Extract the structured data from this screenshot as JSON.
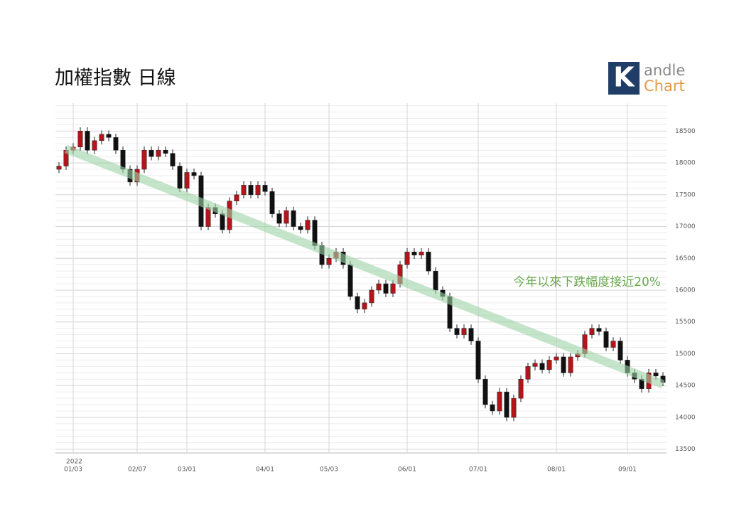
{
  "chart_data": {
    "type": "candlestick",
    "title": "加權指數 日線",
    "year_label": "2022",
    "categories": [
      null,
      null,
      "01/03",
      null,
      null,
      null,
      null,
      null,
      null,
      null,
      null,
      "02/07",
      null,
      null,
      null,
      null,
      null,
      null,
      "03/01",
      null,
      null,
      null,
      null,
      null,
      null,
      null,
      null,
      null,
      null,
      "04/01",
      null,
      null,
      null,
      null,
      null,
      null,
      null,
      null,
      "05/03",
      null,
      null,
      null,
      null,
      null,
      null,
      null,
      null,
      null,
      null,
      "06/01",
      null,
      null,
      null,
      null,
      null,
      null,
      null,
      null,
      null,
      "07/01",
      null,
      null,
      null,
      null,
      null,
      null,
      null,
      null,
      null,
      null,
      "08/01",
      null,
      null,
      null,
      null,
      null,
      null,
      null,
      null,
      null,
      "09/01",
      null,
      null,
      null,
      null,
      null
    ],
    "open": [
      17900,
      17950,
      18200,
      18250,
      18500,
      18200,
      18350,
      18450,
      18400,
      18200,
      17900,
      17700,
      17900,
      18200,
      18100,
      18200,
      18150,
      17950,
      17600,
      17850,
      17800,
      17000,
      17300,
      17200,
      16950,
      17400,
      17500,
      17650,
      17500,
      17650,
      17550,
      17200,
      17050,
      17250,
      17000,
      16950,
      17100,
      16700,
      16400,
      16500,
      16600,
      16400,
      15900,
      15700,
      15800,
      16000,
      16100,
      15950,
      16100,
      16400,
      16600,
      16550,
      16600,
      16300,
      16000,
      15900,
      15400,
      15300,
      15400,
      15200,
      14600,
      14200,
      14100,
      14400,
      14000,
      14300,
      14600,
      14800,
      14850,
      14750,
      14900,
      14950,
      14700,
      14950,
      15000,
      15300,
      15400,
      15350,
      15100,
      15200,
      14900,
      14700,
      14600,
      14450,
      14700,
      14650
    ],
    "close": [
      17950,
      18200,
      18250,
      18500,
      18200,
      18350,
      18450,
      18400,
      18200,
      17900,
      17700,
      17900,
      18200,
      18100,
      18200,
      18150,
      17950,
      17600,
      17850,
      17800,
      17000,
      17300,
      17200,
      16950,
      17400,
      17500,
      17650,
      17500,
      17650,
      17550,
      17200,
      17050,
      17250,
      17000,
      16950,
      17100,
      16700,
      16400,
      16500,
      16600,
      16400,
      15900,
      15700,
      15800,
      16000,
      16100,
      15950,
      16100,
      16400,
      16600,
      16550,
      16600,
      16300,
      16000,
      15900,
      15400,
      15300,
      15400,
      15200,
      14600,
      14200,
      14100,
      14400,
      14000,
      14300,
      14600,
      14800,
      14850,
      14750,
      14900,
      14950,
      14700,
      14950,
      15000,
      15300,
      15400,
      15350,
      15100,
      15200,
      14900,
      14700,
      14600,
      14450,
      14700,
      14650,
      14550
    ],
    "high": [
      18010,
      18260,
      18310,
      18560,
      18560,
      18410,
      18510,
      18510,
      18460,
      18260,
      17960,
      17960,
      18260,
      18260,
      18260,
      18260,
      18210,
      18010,
      17910,
      17910,
      17860,
      17360,
      17360,
      17260,
      17460,
      17560,
      17710,
      17710,
      17710,
      17710,
      17610,
      17260,
      17310,
      17310,
      17060,
      17160,
      17160,
      16760,
      16560,
      16660,
      16660,
      16460,
      15960,
      15860,
      16060,
      16160,
      16160,
      16160,
      16460,
      16660,
      16660,
      16660,
      16660,
      16360,
      16060,
      15960,
      15460,
      15460,
      15460,
      15260,
      14660,
      14260,
      14460,
      14460,
      14360,
      14660,
      14860,
      14910,
      14910,
      14960,
      15010,
      15010,
      15010,
      15060,
      15360,
      15460,
      15460,
      15410,
      15260,
      15260,
      14960,
      14760,
      14660,
      14760,
      14760,
      14710
    ],
    "low": [
      17840,
      17890,
      18140,
      18190,
      18140,
      18140,
      18290,
      18340,
      18140,
      17840,
      17640,
      17640,
      17840,
      18040,
      18040,
      18090,
      17890,
      17540,
      17540,
      17740,
      16940,
      16940,
      17140,
      16890,
      16890,
      17340,
      17440,
      17440,
      17440,
      17490,
      17140,
      16990,
      16990,
      16940,
      16890,
      16890,
      16640,
      16340,
      16340,
      16440,
      16340,
      15840,
      15640,
      15640,
      15740,
      15940,
      15890,
      15890,
      16040,
      16340,
      16490,
      16490,
      16240,
      15940,
      15840,
      15340,
      15240,
      15240,
      15140,
      14540,
      14140,
      14040,
      14040,
      13940,
      13940,
      14240,
      14540,
      14740,
      14690,
      14690,
      14840,
      14640,
      14640,
      14890,
      14940,
      15240,
      15290,
      15040,
      15040,
      14840,
      14640,
      14540,
      14390,
      14390,
      14590,
      14490
    ],
    "up_color": "#b3151a",
    "down_color": "#111111",
    "ylim": [
      13440,
      18940
    ],
    "yticks": [
      13500,
      14000,
      14500,
      15000,
      15500,
      16000,
      16500,
      17000,
      17500,
      18000,
      18500
    ],
    "minor_grid_step": 100,
    "grid": true,
    "trendline": {
      "start": [
        1,
        18220
      ],
      "end": [
        85,
        14520
      ],
      "color": "#9fd3a8"
    },
    "annotation": {
      "text": "今年以來下跌幅度接近20%",
      "color": "#6aa84f"
    }
  },
  "logo": {
    "mark": "K",
    "line1": "andle",
    "line2": "Chart"
  }
}
